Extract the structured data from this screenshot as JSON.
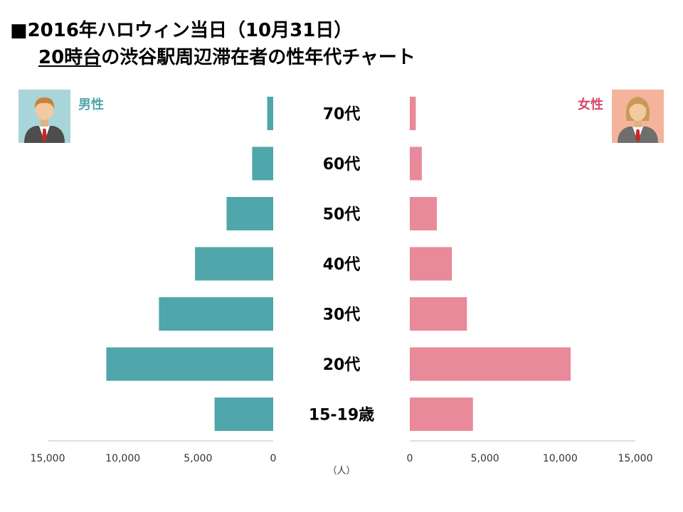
{
  "header": {
    "title_line1": "■2016年ハロウィン当日（10月31日）",
    "title_line2_underlined": "20時台",
    "title_line2_rest": "の渋谷駅周辺滞在者の性年代チャート"
  },
  "chart_data": {
    "type": "bar",
    "orientation": "horizontal-population-pyramid",
    "categories": [
      "70代",
      "60代",
      "50代",
      "40代",
      "30代",
      "20代",
      "15-19歳"
    ],
    "series": [
      {
        "name": "男性",
        "values": [
          400,
          1400,
          3100,
          5200,
          7600,
          11100,
          3900
        ],
        "color": "#4fa6ab",
        "side": "left"
      },
      {
        "name": "女性",
        "values": [
          400,
          800,
          1800,
          2800,
          3800,
          10700,
          4200
        ],
        "color": "#e88a9a",
        "side": "right"
      }
    ],
    "xlim": [
      0,
      15000
    ],
    "ticks": [
      15000,
      10000,
      5000,
      0
    ],
    "tick_labels_left": [
      "15,000",
      "10,000",
      "5,000",
      "0"
    ],
    "tick_labels_right": [
      "0",
      "5,000",
      "10,000",
      "15,000"
    ],
    "unit_label": "（人）",
    "legend": {
      "male_label": "男性",
      "female_label": "女性",
      "male_color": "#4fa6ab",
      "female_color": "#d9476a"
    }
  }
}
